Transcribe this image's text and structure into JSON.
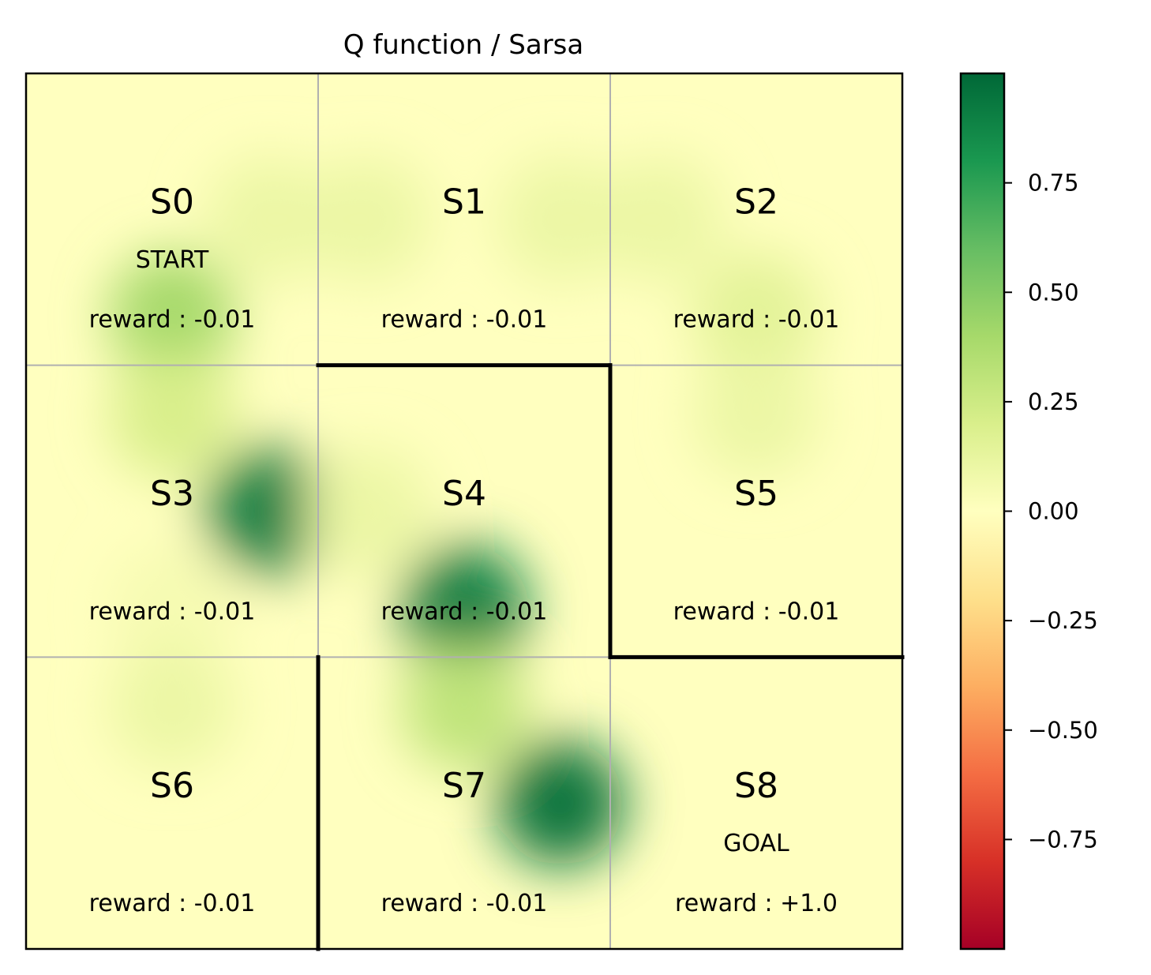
{
  "chart_data": {
    "type": "heatmap",
    "title": "Q function / Sarsa",
    "grid": {
      "rows": 3,
      "cols": 3
    },
    "states": [
      {
        "id": "S0",
        "name": "S0",
        "tag": "START",
        "reward": "reward : -0.01",
        "q": {
          "up": 0.0,
          "right": 0.1,
          "down": 0.4,
          "left": 0.0
        }
      },
      {
        "id": "S1",
        "name": "S1",
        "tag": "",
        "reward": "reward : -0.01",
        "q": {
          "up": 0.0,
          "right": 0.1,
          "down": 0.0,
          "left": 0.1
        }
      },
      {
        "id": "S2",
        "name": "S2",
        "tag": "",
        "reward": "reward : -0.01",
        "q": {
          "up": 0.0,
          "right": 0.0,
          "down": 0.15,
          "left": 0.1
        }
      },
      {
        "id": "S3",
        "name": "S3",
        "tag": "",
        "reward": "reward : -0.01",
        "q": {
          "up": 0.2,
          "right": 0.9,
          "down": 0.05,
          "left": 0.0
        }
      },
      {
        "id": "S4",
        "name": "S4",
        "tag": "",
        "reward": "reward : -0.01",
        "q": {
          "up": 0.0,
          "right": 0.0,
          "down": 0.9,
          "left": 0.1
        }
      },
      {
        "id": "S5",
        "name": "S5",
        "tag": "",
        "reward": "reward : -0.01",
        "q": {
          "up": 0.1,
          "right": 0.0,
          "down": 0.0,
          "left": 0.0
        }
      },
      {
        "id": "S6",
        "name": "S6",
        "tag": "",
        "reward": "reward : -0.01",
        "q": {
          "up": 0.1,
          "right": 0.0,
          "down": 0.0,
          "left": 0.0
        }
      },
      {
        "id": "S7",
        "name": "S7",
        "tag": "",
        "reward": "reward : -0.01",
        "q": {
          "up": 0.3,
          "right": 0.95,
          "down": 0.0,
          "left": 0.0
        }
      },
      {
        "id": "S8",
        "name": "S8",
        "tag": "GOAL",
        "reward": "reward : +1.0",
        "q": {
          "up": 0.0,
          "right": 0.0,
          "down": 0.0,
          "left": 0.0
        }
      }
    ],
    "walls": [
      {
        "between": [
          "S1",
          "S4"
        ]
      },
      {
        "between": [
          "S4",
          "S5"
        ]
      },
      {
        "between": [
          "S5",
          "S8"
        ]
      },
      {
        "between": [
          "S6",
          "S7"
        ]
      }
    ],
    "colorbar": {
      "colormap": "RdYlGn",
      "range": [
        -1.0,
        1.0
      ],
      "ticks": [
        0.75,
        0.5,
        0.25,
        0.0,
        -0.25,
        -0.5,
        -0.75
      ],
      "tick_labels": [
        "0.75",
        "0.50",
        "0.25",
        "0.00",
        "−0.25",
        "−0.50",
        "−0.75"
      ]
    },
    "grid_lines": true,
    "legend": "colorbar-right"
  }
}
